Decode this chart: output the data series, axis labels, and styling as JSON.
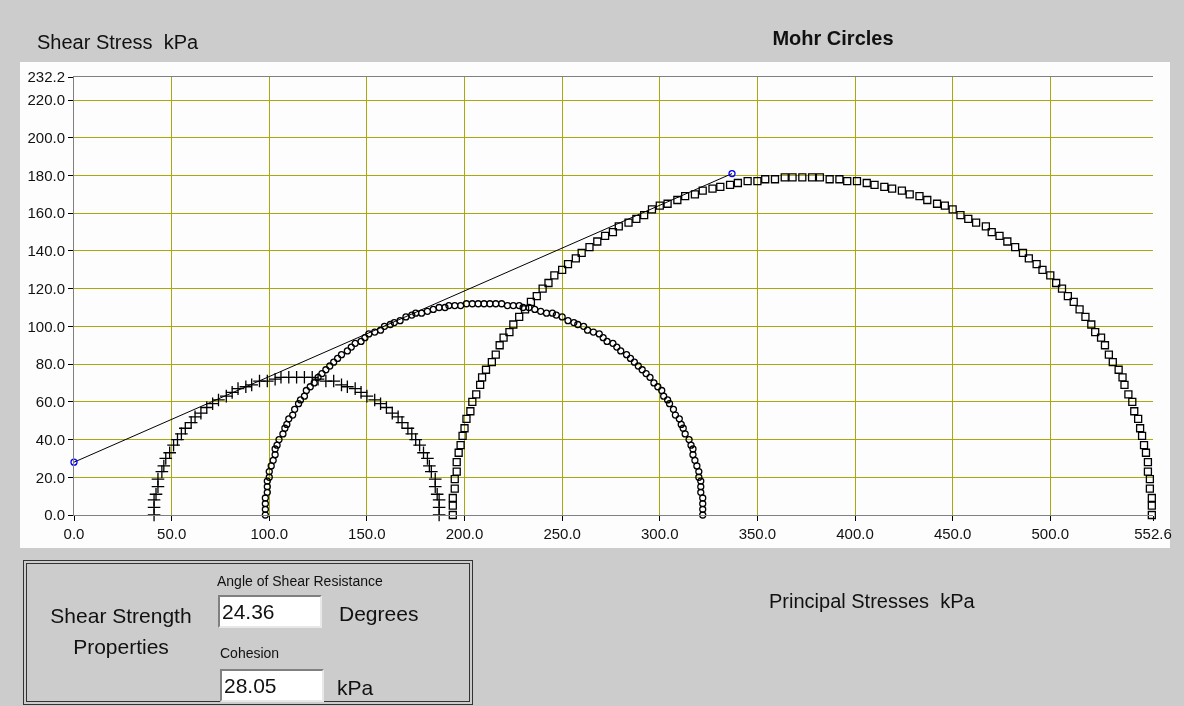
{
  "chart_data": [
    {
      "type": "scatter",
      "title": "Mohr Circles",
      "xlabel": "Principal Stresses  kPa",
      "ylabel": "Shear Stress  kPa",
      "xlim": [
        0,
        552.6
      ],
      "xticks": [
        {
          "value": 0,
          "label": "0.0"
        },
        {
          "value": 50,
          "label": "50.0"
        },
        {
          "value": 100,
          "label": "100.0"
        },
        {
          "value": 150,
          "label": "150.0"
        },
        {
          "value": 200,
          "label": "200.0"
        },
        {
          "value": 250,
          "label": "250.0"
        },
        {
          "value": 300,
          "label": "300.0"
        },
        {
          "value": 350,
          "label": "350.0"
        },
        {
          "value": 400,
          "label": "400.0"
        },
        {
          "value": 450,
          "label": "450.0"
        },
        {
          "value": 500,
          "label": "500.0"
        },
        552.6
      ],
      "ylim": [
        0,
        232.2
      ],
      "yticks": [
        {
          "value": 0,
          "label": "0.0"
        },
        {
          "value": 20,
          "label": "20.0"
        },
        {
          "value": 40,
          "label": "40.0"
        },
        {
          "value": 60,
          "label": "60.0"
        },
        {
          "value": 80,
          "label": "80.0"
        },
        {
          "value": 100,
          "label": "100.0"
        },
        {
          "value": 120,
          "label": "120.0"
        },
        {
          "value": 140,
          "label": "140.0"
        },
        {
          "value": 160,
          "label": "160.0"
        },
        {
          "value": 180,
          "label": "180.0"
        },
        {
          "value": 200,
          "label": "200.0"
        },
        {
          "value": 220,
          "label": "220.0"
        },
        232.2
      ],
      "grid": true,
      "series": [
        {
          "type": "scatter",
          "marker": "cross",
          "color": "#000000",
          "x": [
            41,
            41,
            41,
            42,
            43,
            43,
            45,
            46,
            47,
            49,
            51,
            53,
            55,
            57,
            60,
            62,
            65,
            68,
            71,
            74,
            78,
            81,
            84,
            88,
            91,
            95,
            99,
            103,
            106,
            110,
            114,
            118,
            122,
            125,
            129,
            133,
            137,
            140,
            144,
            147,
            150,
            154,
            157,
            160,
            163,
            166,
            168,
            171,
            173,
            175,
            177,
            179,
            181,
            182,
            183,
            185,
            185,
            186,
            187,
            187,
            187
          ],
          "values": [
            0,
            4,
            8,
            11,
            15,
            19,
            23,
            26,
            30,
            33,
            37,
            40,
            43,
            46,
            49,
            52,
            54,
            57,
            59,
            61,
            63,
            65,
            67,
            68,
            69,
            71,
            71,
            72,
            73,
            73,
            73,
            73,
            73,
            72,
            71,
            71,
            69,
            68,
            67,
            65,
            63,
            61,
            59,
            57,
            54,
            52,
            49,
            46,
            43,
            40,
            37,
            33,
            30,
            26,
            23,
            19,
            15,
            11,
            8,
            4,
            0
          ]
        },
        {
          "type": "scatter",
          "marker": "circle",
          "color": "#000000",
          "x": [
            98,
            98,
            98,
            98,
            99,
            99,
            99,
            100,
            100,
            101,
            102,
            103,
            103,
            104,
            105,
            107,
            108,
            109,
            110,
            112,
            113,
            115,
            116,
            118,
            119,
            121,
            123,
            125,
            127,
            129,
            131,
            133,
            135,
            137,
            140,
            142,
            144,
            147,
            149,
            151,
            154,
            157,
            159,
            162,
            164,
            167,
            170,
            173,
            175,
            178,
            181,
            184,
            187,
            190,
            192,
            195,
            198,
            201,
            204,
            207,
            210,
            213,
            216,
            219,
            222,
            225,
            228,
            230,
            233,
            236,
            239,
            242,
            245,
            247,
            250,
            253,
            256,
            258,
            261,
            263,
            266,
            269,
            271,
            273,
            276,
            278,
            280,
            283,
            285,
            287,
            289,
            291,
            293,
            295,
            297,
            299,
            301,
            302,
            304,
            305,
            307,
            308,
            310,
            311,
            312,
            313,
            315,
            316,
            317,
            317,
            318,
            319,
            320,
            320,
            321,
            321,
            321,
            322,
            322,
            322,
            322
          ],
          "values": [
            0,
            3,
            6,
            9,
            12,
            15,
            18,
            20,
            23,
            26,
            29,
            32,
            35,
            37,
            40,
            43,
            46,
            48,
            51,
            53,
            56,
            59,
            61,
            63,
            66,
            68,
            70,
            73,
            75,
            77,
            79,
            81,
            83,
            85,
            87,
            89,
            91,
            92,
            94,
            96,
            97,
            98,
            100,
            101,
            102,
            103,
            105,
            106,
            107,
            107,
            108,
            109,
            110,
            110,
            111,
            111,
            111,
            112,
            112,
            112,
            112,
            112,
            112,
            112,
            111,
            111,
            111,
            110,
            110,
            109,
            108,
            107,
            107,
            106,
            105,
            103,
            102,
            101,
            100,
            98,
            97,
            96,
            94,
            92,
            91,
            89,
            87,
            85,
            83,
            81,
            79,
            77,
            75,
            73,
            70,
            68,
            66,
            63,
            61,
            59,
            56,
            53,
            51,
            48,
            46,
            43,
            40,
            37,
            35,
            32,
            29,
            26,
            23,
            20,
            18,
            15,
            12,
            9,
            6,
            3,
            0
          ]
        },
        {
          "type": "scatter",
          "marker": "square",
          "color": "#000000",
          "x": [
            194,
            194,
            194,
            195,
            195,
            196,
            196,
            197,
            198,
            199,
            200,
            201,
            203,
            204,
            206,
            208,
            209,
            211,
            214,
            216,
            218,
            220,
            223,
            225,
            228,
            231,
            234,
            237,
            240,
            243,
            246,
            250,
            253,
            257,
            260,
            264,
            268,
            272,
            276,
            279,
            284,
            288,
            292,
            296,
            300,
            304,
            309,
            313,
            318,
            322,
            327,
            331,
            336,
            340,
            345,
            350,
            354,
            359,
            364,
            368,
            373,
            378,
            382,
            387,
            392,
            396,
            401,
            406,
            410,
            415,
            419,
            424,
            428,
            433,
            437,
            442,
            446,
            450,
            454,
            458,
            462,
            467,
            470,
            474,
            478,
            482,
            486,
            489,
            493,
            496,
            500,
            503,
            506,
            509,
            512,
            515,
            518,
            521,
            523,
            526,
            528,
            530,
            532,
            535,
            537,
            538,
            540,
            542,
            543,
            545,
            546,
            547,
            548,
            549,
            550,
            550,
            551,
            551,
            552,
            552,
            552
          ],
          "values": [
            0,
            5,
            9,
            14,
            19,
            23,
            28,
            33,
            37,
            42,
            46,
            51,
            55,
            60,
            64,
            69,
            73,
            77,
            81,
            85,
            90,
            94,
            97,
            101,
            105,
            109,
            113,
            116,
            120,
            123,
            127,
            130,
            133,
            136,
            139,
            142,
            145,
            148,
            150,
            153,
            155,
            157,
            159,
            162,
            164,
            165,
            167,
            169,
            170,
            172,
            173,
            174,
            175,
            176,
            177,
            177,
            178,
            178,
            179,
            179,
            179,
            179,
            179,
            178,
            178,
            177,
            177,
            176,
            175,
            174,
            173,
            172,
            170,
            169,
            167,
            165,
            164,
            162,
            159,
            157,
            155,
            153,
            150,
            148,
            145,
            142,
            139,
            136,
            133,
            130,
            127,
            123,
            120,
            116,
            113,
            109,
            105,
            101,
            97,
            94,
            90,
            85,
            81,
            77,
            73,
            69,
            64,
            60,
            55,
            51,
            46,
            42,
            37,
            33,
            28,
            23,
            19,
            14,
            9,
            5,
            0
          ]
        },
        {
          "type": "line",
          "color": "#000000",
          "x": [
            0,
            337
          ],
          "values": [
            28,
            181
          ]
        },
        {
          "type": "scatter",
          "marker": "circle",
          "color": "#0000ff",
          "x": [
            0,
            337
          ],
          "values": [
            28,
            181
          ]
        }
      ]
    },
    {
      "type": "other",
      "title": "Shear Strength Properties",
      "annotations": [
        "Angle of Shear Resistance",
        "24.36",
        "Degrees",
        "Cohesion",
        "28.05",
        "kPa"
      ]
    }
  ]
}
